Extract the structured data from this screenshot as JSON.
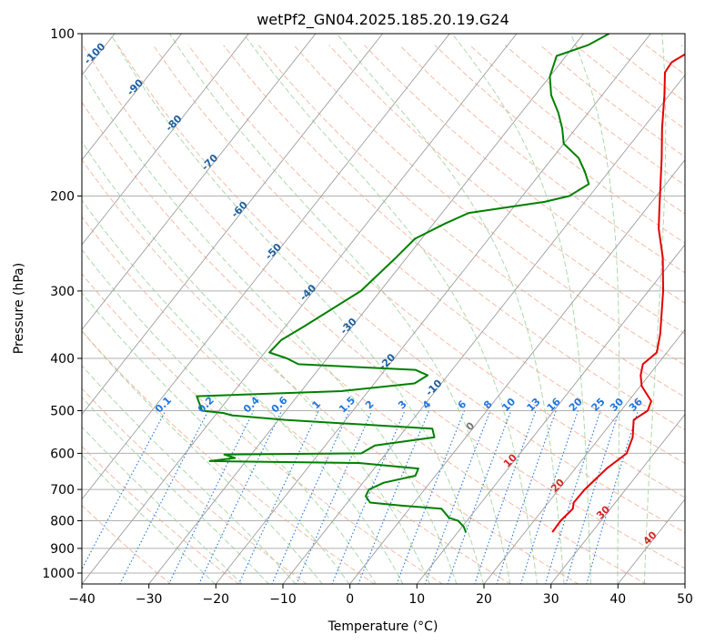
{
  "chart_data": {
    "type": "line",
    "title": "wetPf2_GN04.2025.185.20.19.G24",
    "xlabel": "Temperature (°C)",
    "ylabel": "Pressure (hPa)",
    "xlim": [
      -40,
      50
    ],
    "ylim": [
      1050,
      100
    ],
    "y_scale": "log",
    "x_ticks": [
      -40,
      -30,
      -20,
      -10,
      0,
      10,
      20,
      30,
      40,
      50
    ],
    "x_tick_labels": [
      "−40",
      "−30",
      "−20",
      "−10",
      "0",
      "10",
      "20",
      "30",
      "40",
      "50"
    ],
    "y_ticks": [
      100,
      200,
      300,
      400,
      500,
      600,
      700,
      800,
      900,
      1000
    ],
    "y_tick_labels": [
      "100",
      "200",
      "300",
      "400",
      "500",
      "600",
      "700",
      "800",
      "900",
      "1000"
    ],
    "grid": true,
    "colors": {
      "temperature": "#e50000",
      "dewpoint": "#008000",
      "isotherms": "#9e9e9e",
      "dry_adiabats": "#f2a58a",
      "moist_adiabats": "#9ed39e",
      "mixing_ratio": "#1f77e0",
      "isotherm_labels": "#1f5f9e",
      "red_labels": "#d62728",
      "gray_label": "#777777"
    },
    "series": [
      {
        "name": "",
        "color": "#e50000",
        "points": [
          [
            840,
            24.1
          ],
          [
            800,
            24.0
          ],
          [
            760,
            24.4
          ],
          [
            740,
            23.8
          ],
          [
            700,
            23.9
          ],
          [
            640,
            24.7
          ],
          [
            600,
            25.9
          ],
          [
            560,
            24.9
          ],
          [
            520,
            23.0
          ],
          [
            500,
            24.0
          ],
          [
            480,
            23.4
          ],
          [
            450,
            20.2
          ],
          [
            430,
            18.8
          ],
          [
            410,
            17.8
          ],
          [
            390,
            18.5
          ],
          [
            360,
            16.8
          ],
          [
            300,
            12.2
          ],
          [
            260,
            8.2
          ],
          [
            230,
            4.2
          ],
          [
            210,
            1.8
          ],
          [
            190,
            -0.8
          ],
          [
            170,
            -3.7
          ],
          [
            150,
            -7.1
          ],
          [
            130,
            -10.7
          ],
          [
            118,
            -13.3
          ],
          [
            113,
            -13.5
          ],
          [
            108,
            -12.1
          ],
          [
            100,
            -9.5
          ]
        ]
      },
      {
        "name": "",
        "color": "#008000",
        "points": [
          [
            840,
            11.2
          ],
          [
            820,
            10.2
          ],
          [
            800,
            8.7
          ],
          [
            790,
            7.0
          ],
          [
            760,
            4.8
          ],
          [
            750,
            -1.5
          ],
          [
            740,
            -6.6
          ],
          [
            720,
            -8.0
          ],
          [
            700,
            -8.3
          ],
          [
            680,
            -6.9
          ],
          [
            660,
            -3.0
          ],
          [
            640,
            -3.4
          ],
          [
            625,
            -12.9
          ],
          [
            620,
            -35.4
          ],
          [
            612,
            -32.0
          ],
          [
            603,
            -34.0
          ],
          [
            600,
            -13.7
          ],
          [
            580,
            -12.6
          ],
          [
            560,
            -4.7
          ],
          [
            540,
            -6.0
          ],
          [
            520,
            -29.0
          ],
          [
            510,
            -37.5
          ],
          [
            505,
            -39.0
          ],
          [
            500,
            -42.5
          ],
          [
            470,
            -45.0
          ],
          [
            460,
            -24.0
          ],
          [
            445,
            -14.0
          ],
          [
            430,
            -13.0
          ],
          [
            420,
            -15.5
          ],
          [
            410,
            -33.6
          ],
          [
            400,
            -36.0
          ],
          [
            390,
            -39.3
          ],
          [
            370,
            -39.0
          ],
          [
            350,
            -37.3
          ],
          [
            300,
            -32.9
          ],
          [
            260,
            -31.6
          ],
          [
            240,
            -31.0
          ],
          [
            225,
            -28.3
          ],
          [
            215,
            -26.0
          ],
          [
            205,
            -16.0
          ],
          [
            200,
            -13.0
          ],
          [
            190,
            -11.5
          ],
          [
            180,
            -13.6
          ],
          [
            170,
            -16.1
          ],
          [
            160,
            -20.0
          ],
          [
            150,
            -22.0
          ],
          [
            140,
            -24.5
          ],
          [
            130,
            -27.6
          ],
          [
            120,
            -30.0
          ],
          [
            110,
            -31.4
          ],
          [
            105,
            -28.0
          ],
          [
            100,
            -26.2
          ]
        ]
      }
    ],
    "isotherm_labels": [
      "-100",
      "-90",
      "-80",
      "-70",
      "-60",
      "-50",
      "-40",
      "-30",
      "-20",
      "-10"
    ],
    "mixing_ratio_labels": [
      "0.1",
      "0.2",
      "0.4",
      "0.6",
      "1",
      "1.5",
      "2",
      "3",
      "4",
      "6",
      "8",
      "10",
      "13",
      "16",
      "20",
      "25",
      "30",
      "36"
    ],
    "red_isotherm_labels": [
      "10",
      "20",
      "30",
      "40"
    ],
    "zero_label": "0"
  }
}
